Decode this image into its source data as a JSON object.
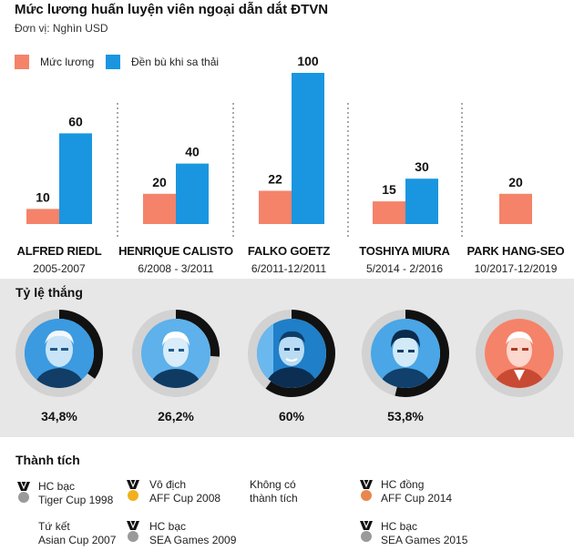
{
  "header": {
    "title": "Mức lương huấn luyện viên ngoại dẫn dắt ĐTVN",
    "unit": "Đơn vị: Nghìn USD"
  },
  "legend": [
    {
      "label": "Mức lương",
      "color": "#f4836a"
    },
    {
      "label": "Đền bù khi sa thải",
      "color": "#1a96e0"
    }
  ],
  "chart_data": {
    "type": "bar",
    "title": "Mức lương huấn luyện viên ngoại dẫn dắt ĐTVN",
    "ylabel": "Đơn vị: Nghìn USD",
    "categories": [
      "ALFRED RIEDL",
      "HENRIQUE CALISTO",
      "FALKO GOETZ",
      "TOSHIYA MIURA",
      "PARK HANG-SEO"
    ],
    "series": [
      {
        "name": "Mức lương",
        "color": "#f4836a",
        "values": [
          10,
          20,
          22,
          15,
          20
        ]
      },
      {
        "name": "Đền bù khi sa thải",
        "color": "#1a96e0",
        "values": [
          60,
          40,
          100,
          30,
          null
        ]
      }
    ],
    "ylim": [
      0,
      100
    ],
    "legend": "top-left",
    "grid": false
  },
  "coaches": [
    {
      "name": "ALFRED RIEDL",
      "period": "2005-2007",
      "win_rate_label": "34,8%",
      "win_rate": 34.8
    },
    {
      "name": "HENRIQUE CALISTO",
      "period": "6/2008 - 3/2011",
      "win_rate_label": "26,2%",
      "win_rate": 26.2
    },
    {
      "name": "FALKO GOETZ",
      "period": "6/2011-12/2011",
      "win_rate_label": "60%",
      "win_rate": 60
    },
    {
      "name": "TOSHIYA MIURA",
      "period": "5/2014 - 2/2016",
      "win_rate_label": "53,8%",
      "win_rate": 53.8
    },
    {
      "name": "PARK HANG-SEO",
      "period": "10/2017-12/2019",
      "win_rate_label": "",
      "win_rate": null
    }
  ],
  "win_section": {
    "title": "Tỷ lệ thắng"
  },
  "achievements": {
    "title": "Thành tích",
    "riedl": [
      {
        "line1": "HC bạc",
        "line2": "Tiger Cup 1998",
        "medal": "silver-medal-icon"
      },
      {
        "line1": "Tứ kết",
        "line2": "Asian Cup 2007",
        "medal": ""
      }
    ],
    "calisto": [
      {
        "line1": "Vô địch",
        "line2": "AFF Cup 2008",
        "medal": "gold-medal-icon"
      },
      {
        "line1": "HC bạc",
        "line2": "SEA Games 2009",
        "medal": "silver-medal-icon"
      }
    ],
    "goetz": [
      {
        "line1": "Không có",
        "line2": "thành tích",
        "medal": ""
      }
    ],
    "miura": [
      {
        "line1": "HC đồng",
        "line2": "AFF Cup 2014",
        "medal": "bronze-medal-icon"
      },
      {
        "line1": "HC bạc",
        "line2": "SEA Games 2015",
        "medal": "silver-medal-icon"
      }
    ]
  },
  "colors": {
    "salary": "#f4836a",
    "compensation": "#1a96e0",
    "ring_track": "#d2d2d2",
    "ring_fill": "#111111",
    "gold": "#f2b01e",
    "silver": "#9a9a9a",
    "bronze": "#e8874e"
  }
}
